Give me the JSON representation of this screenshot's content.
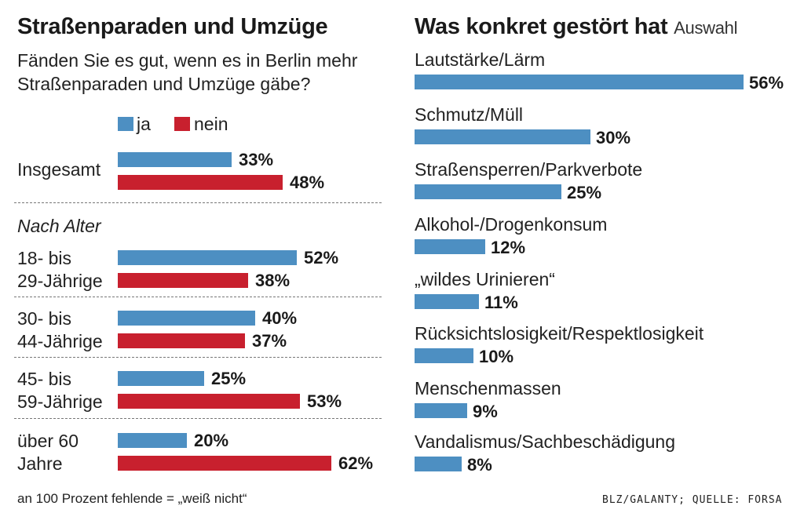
{
  "colors": {
    "ja": "#4d8fc2",
    "nein": "#c8202e",
    "right_bar": "#4d8fc2"
  },
  "left": {
    "title": "Straßenparaden und Umzüge",
    "subtitle_line1": "Fänden Sie es gut, wenn es in Berlin mehr",
    "subtitle_line2": "Straßenparaden und Umzüge gäbe?",
    "legend": {
      "ja": "ja",
      "nein": "nein"
    },
    "group_heading": "Nach Alter",
    "rows": [
      {
        "label1": "Insgesamt",
        "label2": "",
        "ja": 33,
        "nein": 48,
        "ja_label": "33%",
        "nein_label": "48%"
      },
      {
        "label1": "18- bis",
        "label2": "29-Jährige",
        "ja": 52,
        "nein": 38,
        "ja_label": "52%",
        "nein_label": "38%"
      },
      {
        "label1": "30- bis",
        "label2": "44-Jährige",
        "ja": 40,
        "nein": 37,
        "ja_label": "40%",
        "nein_label": "37%"
      },
      {
        "label1": "45- bis",
        "label2": "59-Jährige",
        "ja": 25,
        "nein": 53,
        "ja_label": "25%",
        "nein_label": "53%"
      },
      {
        "label1": "über 60",
        "label2": "Jahre",
        "ja": 20,
        "nein": 62,
        "ja_label": "20%",
        "nein_label": "62%"
      }
    ],
    "footnote": "an 100 Prozent fehlende = „weiß nicht“"
  },
  "right": {
    "title": "Was konkret gestört hat",
    "title_suffix": "Auswahl",
    "items": [
      {
        "label": "Lautstärke/Lärm",
        "value": 56,
        "value_label": "56%"
      },
      {
        "label": "Schmutz/Müll",
        "value": 30,
        "value_label": "30%"
      },
      {
        "label": "Straßensperren/Parkverbote",
        "value": 25,
        "value_label": "25%"
      },
      {
        "label": "Alkohol-/Drogenkonsum",
        "value": 12,
        "value_label": "12%"
      },
      {
        "label": "„wildes Urinieren“",
        "value": 11,
        "value_label": "11%"
      },
      {
        "label": "Rücksichtslosigkeit/Respektlosigkeit",
        "value": 10,
        "value_label": "10%"
      },
      {
        "label": "Menschenmassen",
        "value": 9,
        "value_label": "9%"
      },
      {
        "label": "Vandalismus/Sachbeschädigung",
        "value": 8,
        "value_label": "8%"
      }
    ],
    "source": "BLZ/GALANTY; QUELLE: FORSA"
  },
  "chart_data": [
    {
      "type": "bar",
      "title": "Straßenparaden und Umzüge",
      "subtitle": "Fänden Sie es gut, wenn es in Berlin mehr Straßenparaden und Umzüge gäbe?",
      "categories": [
        "Insgesamt",
        "18- bis 29-Jährige",
        "30- bis 44-Jährige",
        "45- bis 59-Jährige",
        "über 60 Jahre"
      ],
      "series": [
        {
          "name": "ja",
          "values": [
            33,
            52,
            40,
            25,
            20
          ]
        },
        {
          "name": "nein",
          "values": [
            48,
            38,
            37,
            53,
            62
          ]
        }
      ],
      "orientation": "horizontal",
      "legend": "top-left",
      "grid": false
    },
    {
      "type": "bar",
      "title": "Was konkret gestört hat",
      "categories": [
        "Lautstärke/Lärm",
        "Schmutz/Müll",
        "Straßensperren/Parkverbote",
        "Alkohol-/Drogenkonsum",
        "„wildes Urinieren“",
        "Rücksichtslosigkeit/Respektlosigkeit",
        "Menschenmassen",
        "Vandalismus/Sachbeschädigung"
      ],
      "values": [
        56,
        30,
        25,
        12,
        11,
        10,
        9,
        8
      ],
      "orientation": "horizontal",
      "grid": false
    }
  ]
}
